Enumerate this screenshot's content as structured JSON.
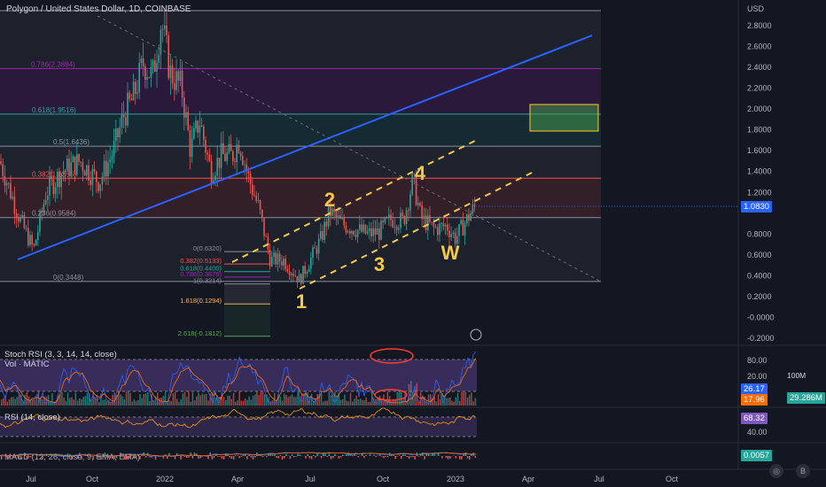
{
  "header": {
    "symbol_title": "Polygon / United States Dollar, 1D, COINBASE"
  },
  "price_axis": {
    "currency": "USD",
    "ticks": [
      "2.8000",
      "2.6000",
      "2.4000",
      "2.2000",
      "2.0000",
      "1.8000",
      "1.6000",
      "1.4000",
      "1.2000",
      "1.0830",
      "0.8000",
      "0.6000",
      "0.4000",
      "0.2000",
      "-0.0000",
      "-0.2000"
    ],
    "current_price": "1.0830"
  },
  "time_axis": {
    "ticks": [
      "Jul",
      "Oct",
      "2022",
      "Apr",
      "Jul",
      "Oct",
      "2023",
      "Apr",
      "Jul",
      "Oct"
    ]
  },
  "fib_levels": [
    {
      "label": "0.786(2.3884)",
      "value": 2.3884,
      "color": "#9c27b0"
    },
    {
      "label": "0.618(1.9516)",
      "value": 1.9516,
      "color": "#26a69a"
    },
    {
      "label": "0.5(1.6436)",
      "value": 1.6436,
      "color": "#8a8f9c"
    },
    {
      "label": "0.382(1.3356)",
      "value": 1.3356,
      "color": "#ef5350"
    },
    {
      "label": "0.236(0.9584)",
      "value": 0.9584,
      "color": "#8a8f9c"
    },
    {
      "label": "0(0.3448)",
      "value": 0.3448,
      "color": "#8a8f9c"
    }
  ],
  "fib_small_levels": [
    {
      "label": "0(0.6320)",
      "value": 0.632,
      "color": "#8a8f9c"
    },
    {
      "label": "0.382(0.5133)",
      "value": 0.5133,
      "color": "#ef5350"
    },
    {
      "label": "0.618(0.4400)",
      "value": 0.44,
      "color": "#26a69a"
    },
    {
      "label": "0.786(0.3879)",
      "value": 0.3879,
      "color": "#9c27b0"
    },
    {
      "label": "1(0.3214)",
      "value": 0.3214,
      "color": "#8a8f9c"
    },
    {
      "label": "1.618(0.1294)",
      "value": 0.1294,
      "color": "#ffb74d"
    },
    {
      "label": "2.618(-0.1812)",
      "value": -0.1812,
      "color": "#4caf50"
    }
  ],
  "wave_labels": [
    "1",
    "2",
    "3",
    "4",
    "W"
  ],
  "indicators": {
    "stoch": {
      "label": "Stoch RSI (3, 3, 14, 14, close)",
      "k": "26.17",
      "d": "17.96",
      "levels": [
        "80.00",
        "20.00"
      ],
      "k_color": "#2962ff",
      "d_color": "#ff6d00"
    },
    "volume": {
      "label": "Vol · MATIC",
      "value": "29.286M",
      "scale": "100M"
    },
    "rsi": {
      "label": "RSI (14, close)",
      "value": "68.32",
      "levels": [
        "60.00",
        "40.00"
      ]
    },
    "macd": {
      "label": "MACD (12, 26, close, 9, EMA, EMA)",
      "value": "0.0057"
    }
  },
  "colors": {
    "background": "#131722",
    "up": "#26a69a",
    "down": "#ef5350",
    "trendline": "#2962ff",
    "channel": "#f5c945",
    "target_box": "#4caf50"
  },
  "chart_data": {
    "type": "candlestick",
    "title": "Polygon / United States Dollar, 1D, COINBASE",
    "y_unit": "USD",
    "ylim": [
      -0.2,
      2.95
    ],
    "x_ticks": [
      "Jul",
      "Oct",
      "2022",
      "Apr",
      "Jul",
      "Oct",
      "2023",
      "Apr",
      "Jul",
      "Oct"
    ],
    "series": [
      {
        "name": "close (approx.)",
        "x": [
          "2021-06",
          "2021-07",
          "2021-08",
          "2021-09",
          "2021-10",
          "2021-11",
          "2021-12",
          "2022-01",
          "2022-02",
          "2022-03",
          "2022-04",
          "2022-05",
          "2022-06",
          "2022-07",
          "2022-08",
          "2022-09",
          "2022-10",
          "2022-11",
          "2022-12",
          "2023-01"
        ],
        "values": [
          1.6,
          0.75,
          1.3,
          1.6,
          1.25,
          1.95,
          2.6,
          2.55,
          1.55,
          1.5,
          1.6,
          0.65,
          0.38,
          0.9,
          0.95,
          0.78,
          0.85,
          1.0,
          0.8,
          1.08
        ]
      }
    ],
    "last_price": 1.083
  }
}
